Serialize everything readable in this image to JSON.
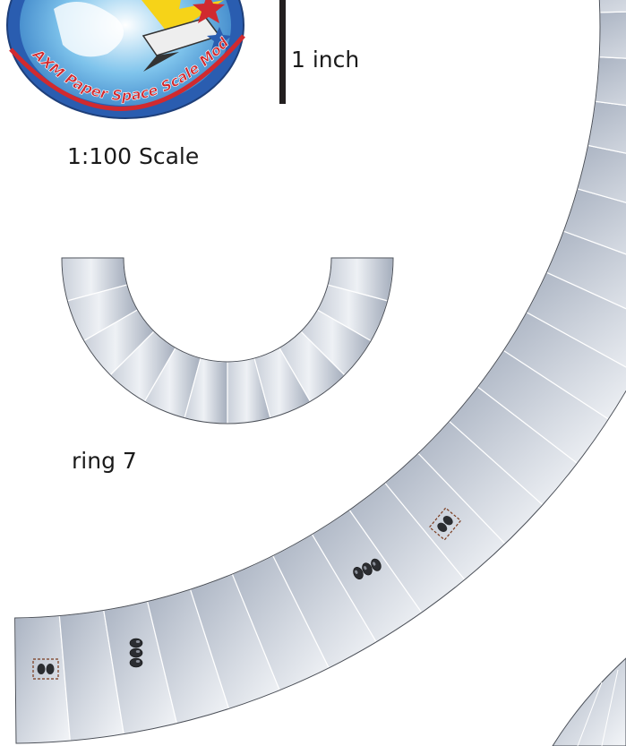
{
  "logo": {
    "text": "AXM Paper Space Scale Modeling"
  },
  "scale_bar": {
    "label": "1 inch"
  },
  "scale": {
    "label": "1:100 Scale"
  },
  "parts": {
    "small_ring_label": "ring 7"
  },
  "colors": {
    "panel_dark": "#a7b0bf",
    "panel_light": "#f2f4f7",
    "seam": "#ffffff",
    "outline": "#4a4f58",
    "logo_red": "#d12a2f",
    "logo_blue": "#2a5db0",
    "logo_yellow": "#f6d318"
  }
}
